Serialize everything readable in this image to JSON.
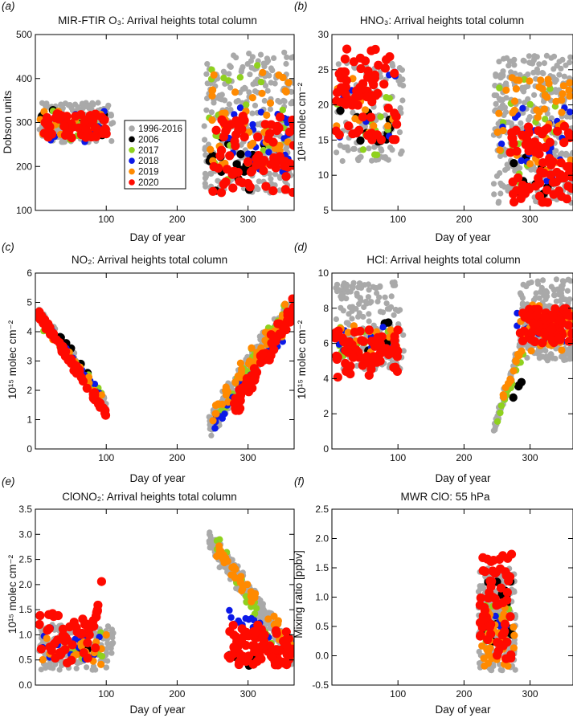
{
  "colors": {
    "1996-2016": "#a9a9a9",
    "2006": "#000000",
    "2017": "#8fd11e",
    "2018": "#0b19e8",
    "2019": "#ff8a00",
    "2020": "#ff0a00"
  },
  "legend": {
    "panel": "a",
    "entries": [
      "1996-2016",
      "2006",
      "2017",
      "2018",
      "2019",
      "2020"
    ]
  },
  "chart_data": [
    {
      "type": "scatter",
      "panel": "(a)",
      "title": "MIR-FTIR O₃: Arrival heights total column",
      "xlabel": "Day of year",
      "ylabel": "Dobson units",
      "xlim": [
        0,
        365
      ],
      "ylim": [
        100,
        500
      ],
      "xticks": [
        100,
        200,
        300
      ],
      "yticks": [
        100,
        200,
        300,
        400,
        500
      ],
      "clusters": [
        {
          "year": "1996-2016",
          "x": [
            5,
            110
          ],
          "y": [
            255,
            345
          ],
          "n": 160
        },
        {
          "year": "1996-2016",
          "x": [
            238,
            365
          ],
          "y": [
            140,
            460
          ],
          "n": 300
        },
        {
          "year": "2006",
          "x": [
            5,
            100
          ],
          "y": [
            265,
            330
          ],
          "n": 12
        },
        {
          "year": "2006",
          "x": [
            245,
            330
          ],
          "y": [
            140,
            270
          ],
          "n": 22
        },
        {
          "year": "2017",
          "x": [
            5,
            100
          ],
          "y": [
            255,
            330
          ],
          "n": 12
        },
        {
          "year": "2017",
          "x": [
            245,
            360
          ],
          "y": [
            170,
            440
          ],
          "n": 25
        },
        {
          "year": "2018",
          "x": [
            5,
            100
          ],
          "y": [
            250,
            330
          ],
          "n": 14
        },
        {
          "year": "2018",
          "x": [
            265,
            360
          ],
          "y": [
            180,
            340
          ],
          "n": 30
        },
        {
          "year": "2019",
          "x": [
            5,
            100
          ],
          "y": [
            270,
            330
          ],
          "n": 20
        },
        {
          "year": "2019",
          "x": [
            245,
            365
          ],
          "y": [
            200,
            420
          ],
          "n": 45
        },
        {
          "year": "2020",
          "x": [
            5,
            100
          ],
          "y": [
            265,
            320
          ],
          "n": 60
        },
        {
          "year": "2020",
          "x": [
            250,
            365
          ],
          "y": [
            140,
            330
          ],
          "n": 80
        }
      ]
    },
    {
      "type": "scatter",
      "panel": "(b)",
      "title": "HNO₃: Arrival heights total column",
      "xlabel": "Day of year",
      "ylabel": "10¹⁶ molec cm⁻²",
      "xlim": [
        0,
        365
      ],
      "ylim": [
        5,
        30
      ],
      "xticks": [
        100,
        200,
        300
      ],
      "yticks": [
        5,
        10,
        15,
        20,
        25,
        30
      ],
      "clusters": [
        {
          "year": "1996-2016",
          "x": [
            5,
            110
          ],
          "y": [
            12,
            26
          ],
          "n": 130
        },
        {
          "year": "1996-2016",
          "x": [
            245,
            365
          ],
          "y": [
            6,
            27
          ],
          "n": 320
        },
        {
          "year": "2006",
          "x": [
            5,
            90
          ],
          "y": [
            14,
            21
          ],
          "n": 12
        },
        {
          "year": "2006",
          "x": [
            270,
            330
          ],
          "y": [
            7,
            14
          ],
          "n": 10
        },
        {
          "year": "2017",
          "x": [
            5,
            100
          ],
          "y": [
            12,
            22
          ],
          "n": 14
        },
        {
          "year": "2017",
          "x": [
            250,
            340
          ],
          "y": [
            7,
            24
          ],
          "n": 20
        },
        {
          "year": "2018",
          "x": [
            5,
            100
          ],
          "y": [
            14,
            25
          ],
          "n": 14
        },
        {
          "year": "2018",
          "x": [
            255,
            365
          ],
          "y": [
            9,
            20
          ],
          "n": 30
        },
        {
          "year": "2019",
          "x": [
            5,
            100
          ],
          "y": [
            14,
            25
          ],
          "n": 20
        },
        {
          "year": "2019",
          "x": [
            250,
            365
          ],
          "y": [
            10,
            24
          ],
          "n": 50
        },
        {
          "year": "2020",
          "x": [
            5,
            100
          ],
          "y": [
            15,
            28
          ],
          "n": 70
        },
        {
          "year": "2020",
          "x": [
            270,
            365
          ],
          "y": [
            6,
            17
          ],
          "n": 80
        }
      ]
    },
    {
      "type": "scatter",
      "panel": "(c)",
      "title": "NO₂: Arrival heights total column",
      "xlabel": "Day of year",
      "ylabel": "10¹⁵ molec cm⁻²",
      "xlim": [
        0,
        365
      ],
      "ylim": [
        0,
        6
      ],
      "xticks": [
        100,
        200,
        300
      ],
      "yticks": [
        0,
        1,
        2,
        3,
        4,
        5,
        6
      ],
      "clusters": [
        {
          "year": "1996-2016",
          "line": [
            [
              5,
              4.6
            ],
            [
              100,
              1.5
            ]
          ],
          "spread": 0.35,
          "n": 160
        },
        {
          "year": "1996-2016",
          "line": [
            [
              245,
              0.8
            ],
            [
              365,
              5.0
            ]
          ],
          "spread": 0.7,
          "n": 260
        },
        {
          "year": "2006",
          "line": [
            [
              20,
              4.3
            ],
            [
              95,
              2.0
            ]
          ],
          "spread": 0.2,
          "n": 8
        },
        {
          "year": "2017",
          "line": [
            [
              10,
              4.1
            ],
            [
              95,
              1.9
            ]
          ],
          "spread": 0.3,
          "n": 16
        },
        {
          "year": "2017",
          "line": [
            [
              250,
              1.0
            ],
            [
              355,
              4.8
            ]
          ],
          "spread": 0.6,
          "n": 25
        },
        {
          "year": "2018",
          "line": [
            [
              10,
              4.4
            ],
            [
              95,
              1.8
            ]
          ],
          "spread": 0.3,
          "n": 14
        },
        {
          "year": "2018",
          "line": [
            [
              250,
              0.7
            ],
            [
              365,
              4.6
            ]
          ],
          "spread": 0.5,
          "n": 30
        },
        {
          "year": "2019",
          "line": [
            [
              5,
              4.4
            ],
            [
              100,
              1.6
            ]
          ],
          "spread": 0.3,
          "n": 18
        },
        {
          "year": "2019",
          "line": [
            [
              250,
              1.2
            ],
            [
              365,
              4.9
            ]
          ],
          "spread": 0.6,
          "n": 55
        },
        {
          "year": "2020",
          "line": [
            [
              5,
              4.6
            ],
            [
              100,
              1.2
            ]
          ],
          "spread": 0.25,
          "n": 70
        },
        {
          "year": "2020",
          "line": [
            [
              280,
              1.4
            ],
            [
              365,
              4.8
            ]
          ],
          "spread": 0.5,
          "n": 80
        }
      ]
    },
    {
      "type": "scatter",
      "panel": "(d)",
      "title": "HCl: Arrival heights total column",
      "xlabel": "Day of year",
      "ylabel": "10¹⁵ molec cm⁻²",
      "xlim": [
        0,
        365
      ],
      "ylim": [
        0,
        10
      ],
      "xticks": [
        100,
        200,
        300
      ],
      "yticks": [
        0,
        2,
        4,
        6,
        8,
        10
      ],
      "clusters": [
        {
          "year": "1996-2016",
          "x": [
            5,
            110
          ],
          "y": [
            4.5,
            9.5
          ],
          "n": 170
        },
        {
          "year": "1996-2016",
          "line": [
            [
              245,
              1.2
            ],
            [
              290,
              6.5
            ]
          ],
          "spread": 0.6,
          "n": 60
        },
        {
          "year": "1996-2016",
          "x": [
            285,
            365
          ],
          "y": [
            5.0,
            9.7
          ],
          "n": 220
        },
        {
          "year": "2006",
          "x": [
            40,
            95
          ],
          "y": [
            5.5,
            7.2
          ],
          "n": 8
        },
        {
          "year": "2006",
          "line": [
            [
              255,
              1.9
            ],
            [
              290,
              4.0
            ]
          ],
          "spread": 0.2,
          "n": 4
        },
        {
          "year": "2017",
          "x": [
            5,
            100
          ],
          "y": [
            5.0,
            7.0
          ],
          "n": 14
        },
        {
          "year": "2017",
          "line": [
            [
              250,
              1.8
            ],
            [
              290,
              5.5
            ]
          ],
          "spread": 0.5,
          "n": 14
        },
        {
          "year": "2018",
          "x": [
            5,
            100
          ],
          "y": [
            5.5,
            7.0
          ],
          "n": 12
        },
        {
          "year": "2018",
          "x": [
            280,
            365
          ],
          "y": [
            6.0,
            8.0
          ],
          "n": 22
        },
        {
          "year": "2019",
          "x": [
            5,
            100
          ],
          "y": [
            5.5,
            7.0
          ],
          "n": 18
        },
        {
          "year": "2019",
          "line": [
            [
              255,
              2.5
            ],
            [
              290,
              6.0
            ]
          ],
          "spread": 0.6,
          "n": 14
        },
        {
          "year": "2019",
          "x": [
            285,
            365
          ],
          "y": [
            5.5,
            8.3
          ],
          "n": 40
        },
        {
          "year": "2020",
          "x": [
            5,
            100
          ],
          "y": [
            4.0,
            6.8
          ],
          "n": 70
        },
        {
          "year": "2020",
          "x": [
            285,
            365
          ],
          "y": [
            6.0,
            8.0
          ],
          "n": 80
        }
      ]
    },
    {
      "type": "scatter",
      "panel": "(e)",
      "title": "ClONO₂: Arrival heights total column",
      "xlabel": "Day of year",
      "ylabel": "10¹⁵ molec cm⁻²",
      "xlim": [
        0,
        365
      ],
      "ylim": [
        0.0,
        3.5
      ],
      "xticks": [
        100,
        200,
        300
      ],
      "yticks": [
        0.0,
        0.5,
        1.0,
        1.5,
        2.0,
        2.5,
        3.0,
        3.5
      ],
      "clusters": [
        {
          "year": "1996-2016",
          "x": [
            5,
            110
          ],
          "y": [
            0.3,
            1.2
          ],
          "n": 170
        },
        {
          "year": "1996-2016",
          "line": [
            [
              245,
              2.9
            ],
            [
              365,
              0.6
            ]
          ],
          "spread": 0.35,
          "n": 300
        },
        {
          "year": "2006",
          "x": [
            40,
            80
          ],
          "y": [
            0.5,
            0.8
          ],
          "n": 5
        },
        {
          "year": "2006",
          "x": [
            255,
            330
          ],
          "y": [
            0.3,
            0.9
          ],
          "n": 8
        },
        {
          "year": "2017",
          "x": [
            10,
            100
          ],
          "y": [
            0.5,
            1.1
          ],
          "n": 16
        },
        {
          "year": "2017",
          "line": [
            [
              255,
              2.9
            ],
            [
              340,
              0.6
            ]
          ],
          "spread": 0.3,
          "n": 25
        },
        {
          "year": "2018",
          "x": [
            10,
            100
          ],
          "y": [
            0.5,
            1.2
          ],
          "n": 14
        },
        {
          "year": "2018",
          "line": [
            [
              255,
              1.6
            ],
            [
              365,
              0.7
            ]
          ],
          "spread": 0.25,
          "n": 22
        },
        {
          "year": "2019",
          "x": [
            5,
            100
          ],
          "y": [
            0.4,
            1.1
          ],
          "n": 18
        },
        {
          "year": "2019",
          "line": [
            [
              255,
              2.7
            ],
            [
              365,
              0.7
            ]
          ],
          "spread": 0.3,
          "n": 55
        },
        {
          "year": "2020",
          "x": [
            5,
            85
          ],
          "y": [
            0.4,
            1.45
          ],
          "n": 50
        },
        {
          "year": "2020",
          "line": [
            [
              85,
              1.3
            ],
            [
              95,
              2.2
            ]
          ],
          "spread": 0.15,
          "n": 8
        },
        {
          "year": "2020",
          "x": [
            270,
            365
          ],
          "y": [
            0.4,
            1.2
          ],
          "n": 80
        }
      ]
    },
    {
      "type": "scatter",
      "panel": "(f)",
      "title": "MWR ClO: 55 hPa",
      "xlabel": "Day of year",
      "ylabel": "Mixing ratio [ppbv]",
      "xlim": [
        0,
        365
      ],
      "ylim": [
        -0.5,
        2.5
      ],
      "xticks": [
        100,
        200,
        300
      ],
      "yticks": [
        -0.5,
        0.0,
        0.5,
        1.0,
        1.5,
        2.0,
        2.5
      ],
      "clusters": [
        {
          "year": "1996-2016",
          "x": [
            222,
            278
          ],
          "y": [
            -0.25,
            1.5
          ],
          "n": 220
        },
        {
          "year": "2006",
          "x": [
            228,
            275
          ],
          "y": [
            0.2,
            1.3
          ],
          "n": 14
        },
        {
          "year": "2017",
          "x": [
            232,
            272
          ],
          "y": [
            0.2,
            0.9
          ],
          "n": 14
        },
        {
          "year": "2018",
          "x": [
            228,
            270
          ],
          "y": [
            0.3,
            0.8
          ],
          "n": 8
        },
        {
          "year": "2019",
          "x": [
            225,
            278
          ],
          "y": [
            -0.2,
            0.9
          ],
          "n": 40
        },
        {
          "year": "2020",
          "x": [
            224,
            272
          ],
          "y": [
            -0.05,
            1.75
          ],
          "n": 65
        }
      ]
    }
  ]
}
